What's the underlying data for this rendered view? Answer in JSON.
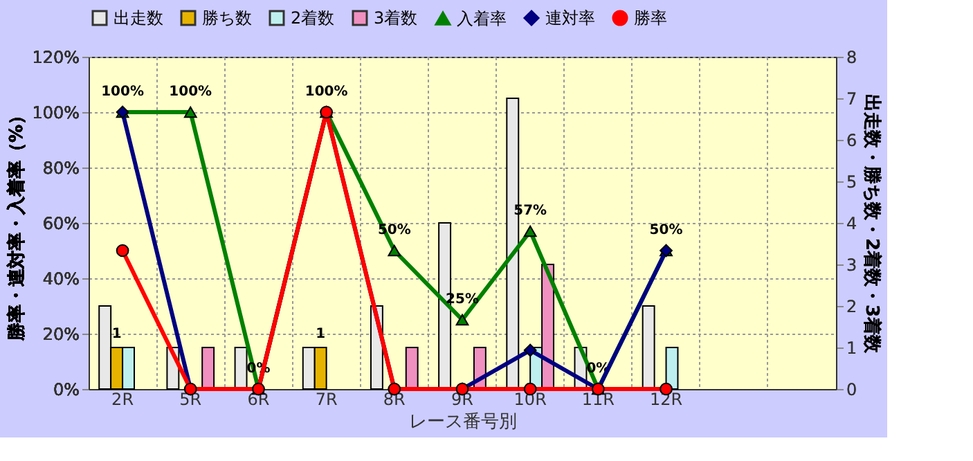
{
  "chart_data": {
    "type": "bar",
    "xlabel": "レース番号別",
    "ylabel": "勝率・連対率・入着率（%）",
    "y2label": "出走数・勝ち数・2着数・3着数",
    "categories": [
      "2R",
      "5R",
      "6R",
      "7R",
      "8R",
      "9R",
      "10R",
      "11R",
      "12R",
      null,
      null
    ],
    "series": [
      {
        "name": "出走数",
        "axis": "y2",
        "color": "#e8e8e8",
        "values": [
          2,
          1,
          1,
          1,
          2,
          4,
          7,
          1,
          2,
          null,
          null
        ]
      },
      {
        "name": "勝ち数",
        "axis": "y2",
        "color": "#e6b400",
        "values": [
          1,
          0,
          0,
          1,
          0,
          0,
          0,
          0,
          0,
          null,
          null
        ],
        "value_labels": [
          "1",
          null,
          null,
          "1",
          null,
          null,
          null,
          null,
          null,
          null,
          null
        ]
      },
      {
        "name": "2着数",
        "axis": "y2",
        "color": "#bff0f0",
        "values": [
          1,
          0,
          0,
          0,
          0,
          0,
          1,
          0,
          1,
          null,
          null
        ]
      },
      {
        "name": "3着数",
        "axis": "y2",
        "color": "#f090c0",
        "values": [
          0,
          1,
          0,
          0,
          1,
          1,
          3,
          0,
          0,
          null,
          null
        ]
      },
      {
        "name": "入着率",
        "type": "line",
        "marker": "triangle",
        "color": "#008000",
        "values": [
          100,
          100,
          0,
          100,
          50,
          25,
          57,
          0,
          50,
          null,
          null
        ],
        "value_labels": [
          "100%",
          "100%",
          "0%",
          "100%",
          "50%",
          "25%",
          "57%",
          "0%",
          "50%",
          null,
          null
        ]
      },
      {
        "name": "連対率",
        "type": "line",
        "marker": "diamond",
        "color": "#000080",
        "values": [
          100,
          0,
          0,
          100,
          0,
          0,
          14,
          0,
          50,
          null,
          null
        ]
      },
      {
        "name": "勝率",
        "type": "line",
        "marker": "circle",
        "color": "#ff0000",
        "values": [
          50,
          0,
          0,
          100,
          0,
          0,
          0,
          0,
          0,
          null,
          null
        ]
      }
    ],
    "ylim": [
      0,
      120
    ],
    "yticks": [
      {
        "value": 0,
        "label": "0%"
      },
      {
        "value": 20,
        "label": "20%"
      },
      {
        "value": 40,
        "label": "40%"
      },
      {
        "value": 60,
        "label": "60%"
      },
      {
        "value": 80,
        "label": "80%"
      },
      {
        "value": 100,
        "label": "100%"
      },
      {
        "value": 120,
        "label": "120%"
      }
    ],
    "y2lim": [
      0,
      8
    ],
    "y2ticks": [
      0,
      1,
      2,
      3,
      4,
      5,
      6,
      7,
      8
    ],
    "grid": true,
    "legend": "top"
  }
}
